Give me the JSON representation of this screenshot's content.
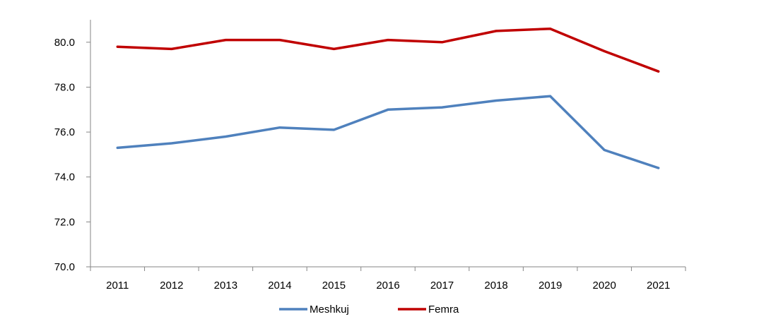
{
  "chart_data": {
    "type": "line",
    "title": "",
    "xlabel": "",
    "ylabel": "",
    "categories": [
      "2011",
      "2012",
      "2013",
      "2014",
      "2015",
      "2016",
      "2017",
      "2018",
      "2019",
      "2020",
      "2021"
    ],
    "ylim": [
      70.0,
      81.0
    ],
    "yticks": [
      "70.0",
      "72.0",
      "74.0",
      "76.0",
      "78.0",
      "80.0"
    ],
    "grid": false,
    "legend_position": "bottom",
    "series": [
      {
        "name": "Meshkuj",
        "color": "#4F81BD",
        "values": [
          75.3,
          75.5,
          75.8,
          76.2,
          76.1,
          77.0,
          77.1,
          77.4,
          77.6,
          75.2,
          74.4
        ]
      },
      {
        "name": "Femra",
        "color": "#C00000",
        "values": [
          79.8,
          79.7,
          80.1,
          80.1,
          79.7,
          80.1,
          80.0,
          80.5,
          80.6,
          79.6,
          78.7
        ]
      }
    ]
  }
}
